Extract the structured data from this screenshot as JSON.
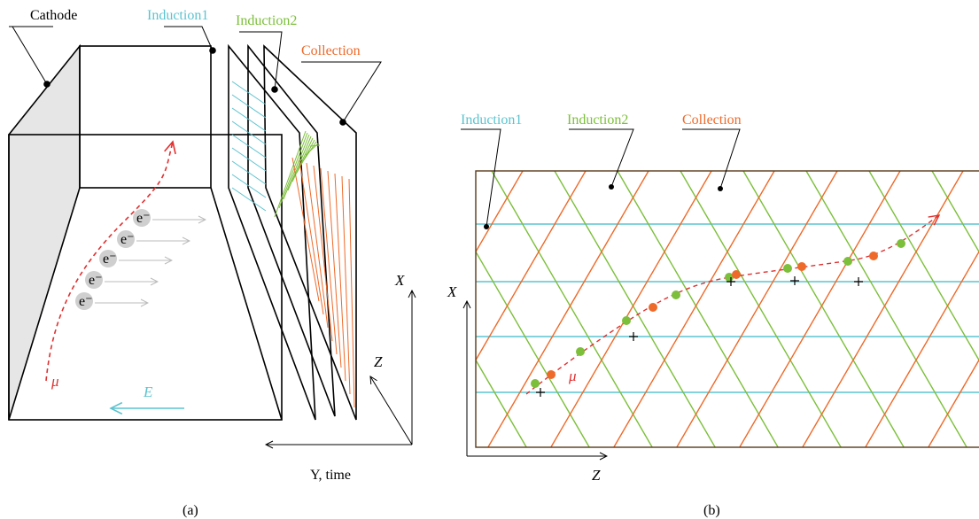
{
  "panel_a": {
    "labels": {
      "cathode": "Cathode",
      "induction1": "Induction1",
      "induction2": "Induction2",
      "collection": "Collection"
    },
    "electrons": [
      "e⁻",
      "e⁻",
      "e⁻",
      "e⁻",
      "e⁻"
    ],
    "muon": "μ",
    "field": "E",
    "axes": {
      "x": "X",
      "z": "Z",
      "y": "Y, time"
    },
    "caption": "(a)"
  },
  "panel_b": {
    "labels": {
      "induction1": "Induction1",
      "induction2": "Induction2",
      "collection": "Collection"
    },
    "muon": "μ",
    "axes": {
      "x": "X",
      "z": "Z"
    },
    "caption": "(b)"
  }
}
